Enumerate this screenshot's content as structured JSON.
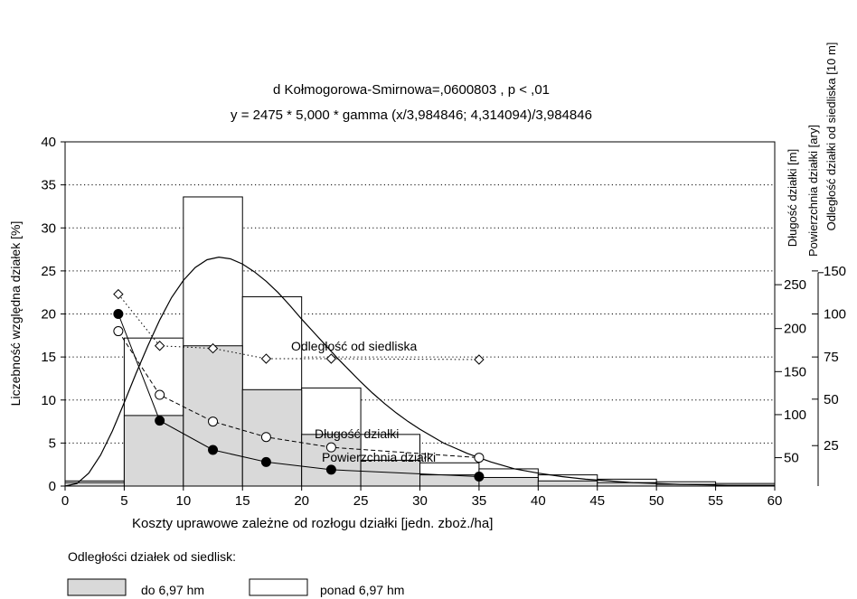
{
  "chart_data": {
    "type": "bar",
    "title": "d Kołmogorowa-Smirnowa=,0600803 , p < ,01",
    "subtitle": "y = 2475 * 5,000 * gamma (x/3,984846; 4,314094)/3,984846",
    "xlabel": "Koszty uprawowe zależne od rozłogu działki [jedn. zboż./ha]",
    "ylabel": "Liczebność względna działek [%]",
    "right_axis_labels": [
      "Długość działki [m]",
      "Powierzchnia działki [ary]",
      "Odległość  działki od siedliska [10 m]"
    ],
    "xlim": [
      0,
      60
    ],
    "ylim": [
      0,
      40
    ],
    "x_ticks": [
      "0",
      "5",
      "10",
      "15",
      "20",
      "25",
      "30",
      "35",
      "40",
      "45",
      "50",
      "55",
      "60"
    ],
    "y_ticks": [
      "0",
      "5",
      "10",
      "15",
      "20",
      "25",
      "30",
      "35",
      "40"
    ],
    "right_axis1_ticks": [
      "50",
      "100",
      "150",
      "200",
      "250"
    ],
    "right_axis2_ticks": [
      "25",
      "50",
      "75",
      "100",
      "150"
    ],
    "grid": "horizontal dotted",
    "bins": [
      [
        0,
        5
      ],
      [
        5,
        10
      ],
      [
        10,
        15
      ],
      [
        15,
        20
      ],
      [
        20,
        25
      ],
      [
        25,
        30
      ],
      [
        30,
        35
      ],
      [
        35,
        40
      ],
      [
        40,
        45
      ],
      [
        45,
        50
      ],
      [
        50,
        55
      ],
      [
        55,
        60
      ]
    ],
    "series": [
      {
        "name": "ponad 6,97 hm",
        "values": [
          0.6,
          17.2,
          33.6,
          22.0,
          11.4,
          6.0,
          2.7,
          2.0,
          1.3,
          0.8,
          0.5,
          0.3
        ]
      },
      {
        "name": "do 6,97 hm",
        "values": [
          0.4,
          8.2,
          16.3,
          11.2,
          6.0,
          3.0,
          1.3,
          1.0,
          0.6,
          0.4,
          0.2,
          0.1
        ]
      }
    ],
    "fit_curve": {
      "x": [
        0,
        1,
        2,
        3,
        4,
        5,
        6,
        7,
        8,
        9,
        10,
        11,
        12,
        13,
        14,
        15,
        16,
        17,
        18,
        19,
        20,
        21,
        22,
        23,
        24,
        25,
        26,
        27,
        28,
        29,
        30,
        32,
        34,
        36,
        38,
        40,
        42,
        44,
        46,
        48,
        50,
        52,
        54,
        56,
        58,
        60
      ],
      "y": [
        0,
        0.3,
        1.5,
        3.6,
        6.4,
        9.7,
        13.1,
        16.3,
        19.3,
        21.9,
        23.9,
        25.4,
        26.3,
        26.6,
        26.4,
        25.8,
        24.9,
        23.8,
        22.5,
        21.0,
        19.4,
        17.9,
        16.4,
        14.9,
        13.5,
        12.1,
        10.8,
        9.6,
        8.5,
        7.5,
        6.6,
        5.0,
        3.8,
        2.8,
        2.0,
        1.5,
        1.1,
        0.8,
        0.6,
        0.4,
        0.3,
        0.2,
        0.15,
        0.1,
        0.07,
        0.05
      ]
    },
    "lines": [
      {
        "name": "Odległość od siedliska",
        "x": [
          4.5,
          8,
          12.5,
          17,
          22.5,
          35
        ],
        "y": [
          22.3,
          16.3,
          16.0,
          14.8,
          14.8,
          14.7
        ],
        "marker": "diamond",
        "style": "dotted"
      },
      {
        "name": "Długość działki",
        "x": [
          4.5,
          8,
          12.5,
          17,
          22.5,
          35
        ],
        "y": [
          18.0,
          10.6,
          7.5,
          5.7,
          4.5,
          3.3
        ],
        "marker": "open-circle",
        "style": "dashed"
      },
      {
        "name": "Powierzchnia działki",
        "x": [
          4.5,
          8,
          12.5,
          17,
          22.5,
          35
        ],
        "y": [
          20.0,
          7.6,
          4.2,
          2.8,
          1.9,
          1.1
        ],
        "marker": "filled-circle",
        "style": "solid"
      }
    ],
    "legend_title": "Odległości działek od siedlisk:",
    "legend": [
      "do 6,97 hm",
      "ponad 6,97 hm"
    ],
    "colors": {
      "fill_inner": "#d9d9d9",
      "fill_outer": "#ffffff",
      "stroke": "#000000"
    }
  }
}
